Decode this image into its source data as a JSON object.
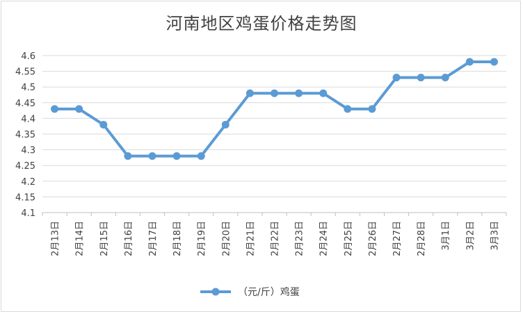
{
  "chart_data": {
    "type": "line",
    "title": "河南地区鸡蛋价格走势图",
    "xlabel": "",
    "ylabel": "",
    "categories": [
      "2月13日",
      "2月14日",
      "2月15日",
      "2月16日",
      "2月17日",
      "2月18日",
      "2月19日",
      "2月20日",
      "2月21日",
      "2月22日",
      "2月23日",
      "2月24日",
      "2月25日",
      "2月26日",
      "2月27日",
      "2月28日",
      "3月1日",
      "3月2日",
      "3月3日"
    ],
    "series": [
      {
        "name": "（元/斤）鸡蛋",
        "values": [
          4.43,
          4.43,
          4.38,
          4.28,
          4.28,
          4.28,
          4.28,
          4.38,
          4.48,
          4.48,
          4.48,
          4.48,
          4.43,
          4.43,
          4.53,
          4.53,
          4.53,
          4.58,
          4.58
        ]
      }
    ],
    "ylim": [
      4.1,
      4.6
    ],
    "yticks": [
      "4.1",
      "4.15",
      "4.2",
      "4.25",
      "4.3",
      "4.35",
      "4.4",
      "4.45",
      "4.5",
      "4.55",
      "4.6"
    ],
    "grid": true,
    "legend_position": "bottom",
    "line_color": "#5b9bd5",
    "grid_color": "#d9d9d9"
  }
}
